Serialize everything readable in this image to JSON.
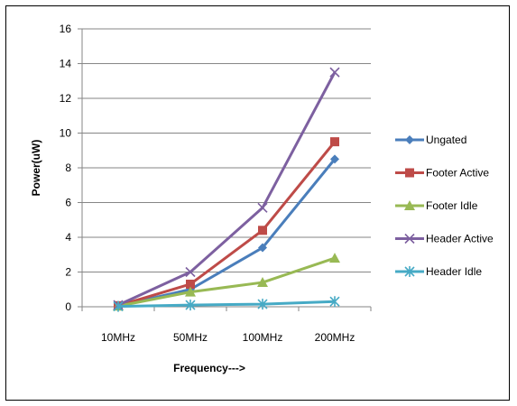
{
  "chart_data": {
    "type": "line",
    "title": "",
    "xlabel": "Frequency--->",
    "ylabel": "Power(uW)",
    "categories": [
      "10MHz",
      "50MHz",
      "100MHz",
      "200MHz"
    ],
    "ylim": [
      0,
      16
    ],
    "yticks": [
      0,
      2,
      4,
      6,
      8,
      10,
      12,
      14,
      16
    ],
    "grid": "horizontal",
    "legend_position": "right",
    "series": [
      {
        "name": "Ungated",
        "color": "#4A7EBB",
        "marker": "diamond",
        "values": [
          0.05,
          1.0,
          3.4,
          8.5
        ]
      },
      {
        "name": "Footer Active",
        "color": "#BE4B48",
        "marker": "square",
        "values": [
          0.06,
          1.3,
          4.4,
          9.5
        ]
      },
      {
        "name": "Footer Idle",
        "color": "#98B954",
        "marker": "triangle",
        "values": [
          0.04,
          0.85,
          1.4,
          2.8
        ]
      },
      {
        "name": "Header Active",
        "color": "#7D60A0",
        "marker": "x",
        "values": [
          0.1,
          2.0,
          5.7,
          13.5
        ]
      },
      {
        "name": "Header Idle",
        "color": "#46AAC5",
        "marker": "star",
        "values": [
          0.02,
          0.1,
          0.15,
          0.3
        ]
      }
    ]
  }
}
